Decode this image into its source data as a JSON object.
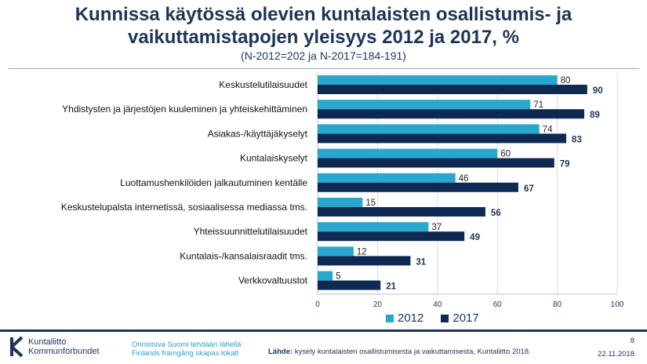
{
  "title_line1": "Kunnissa käytössä olevien kuntalaisten osallistumis- ja",
  "title_line2": "vaikuttamistapojen yleisyys 2012 ja 2017, %",
  "subtitle": "(N-2012=202 ja N-2017=184-191)",
  "colors": {
    "s2012": "#2aa7cf",
    "s2017": "#0f2a52",
    "text": "#1c3557",
    "grid": "#d6dee8"
  },
  "chart_data": {
    "type": "bar",
    "orientation": "horizontal",
    "categories": [
      "Keskustelutilaisuudet",
      "Yhdistysten ja järjestöjen kuuleminen ja yhteiskehittäminen",
      "Asiakas-/käyttäjäkyselyt",
      "Kuntalaiskyselyt",
      "Luottamushenkilöiden jalkautuminen kentälle",
      "Keskustelupalsta internetissä, sosiaalisessa mediassa tms.",
      "Yhteissuunnittelutilaisuudet",
      "Kuntalais-/kansalaisraadit tms.",
      "Verkkovaltuustot"
    ],
    "series": [
      {
        "name": "2012",
        "values": [
          80,
          71,
          74,
          60,
          46,
          15,
          37,
          12,
          5
        ]
      },
      {
        "name": "2017",
        "values": [
          90,
          89,
          83,
          79,
          67,
          56,
          49,
          31,
          21
        ]
      }
    ],
    "xlim": [
      0,
      100
    ],
    "xticks": [
      "0",
      "20",
      "40",
      "60",
      "80",
      "100"
    ],
    "grid": true,
    "legend": "bottom"
  },
  "legend": {
    "item1": "2012",
    "item2": "2017"
  },
  "footer": {
    "logo_line1": "Kuntaliitto",
    "logo_line2": "Kommunförbundet",
    "tagline1": "Onnistuva Suomi tehdään lähellä",
    "tagline2": "Finlands framgång skapas lokalt",
    "source_label": "Lähde:",
    "source_text": " kysely kuntalaisten osallistumisesta ja vaikuttamisesta, Kuntaliitto 2018.",
    "page": "8",
    "date": "22.11.2018"
  }
}
